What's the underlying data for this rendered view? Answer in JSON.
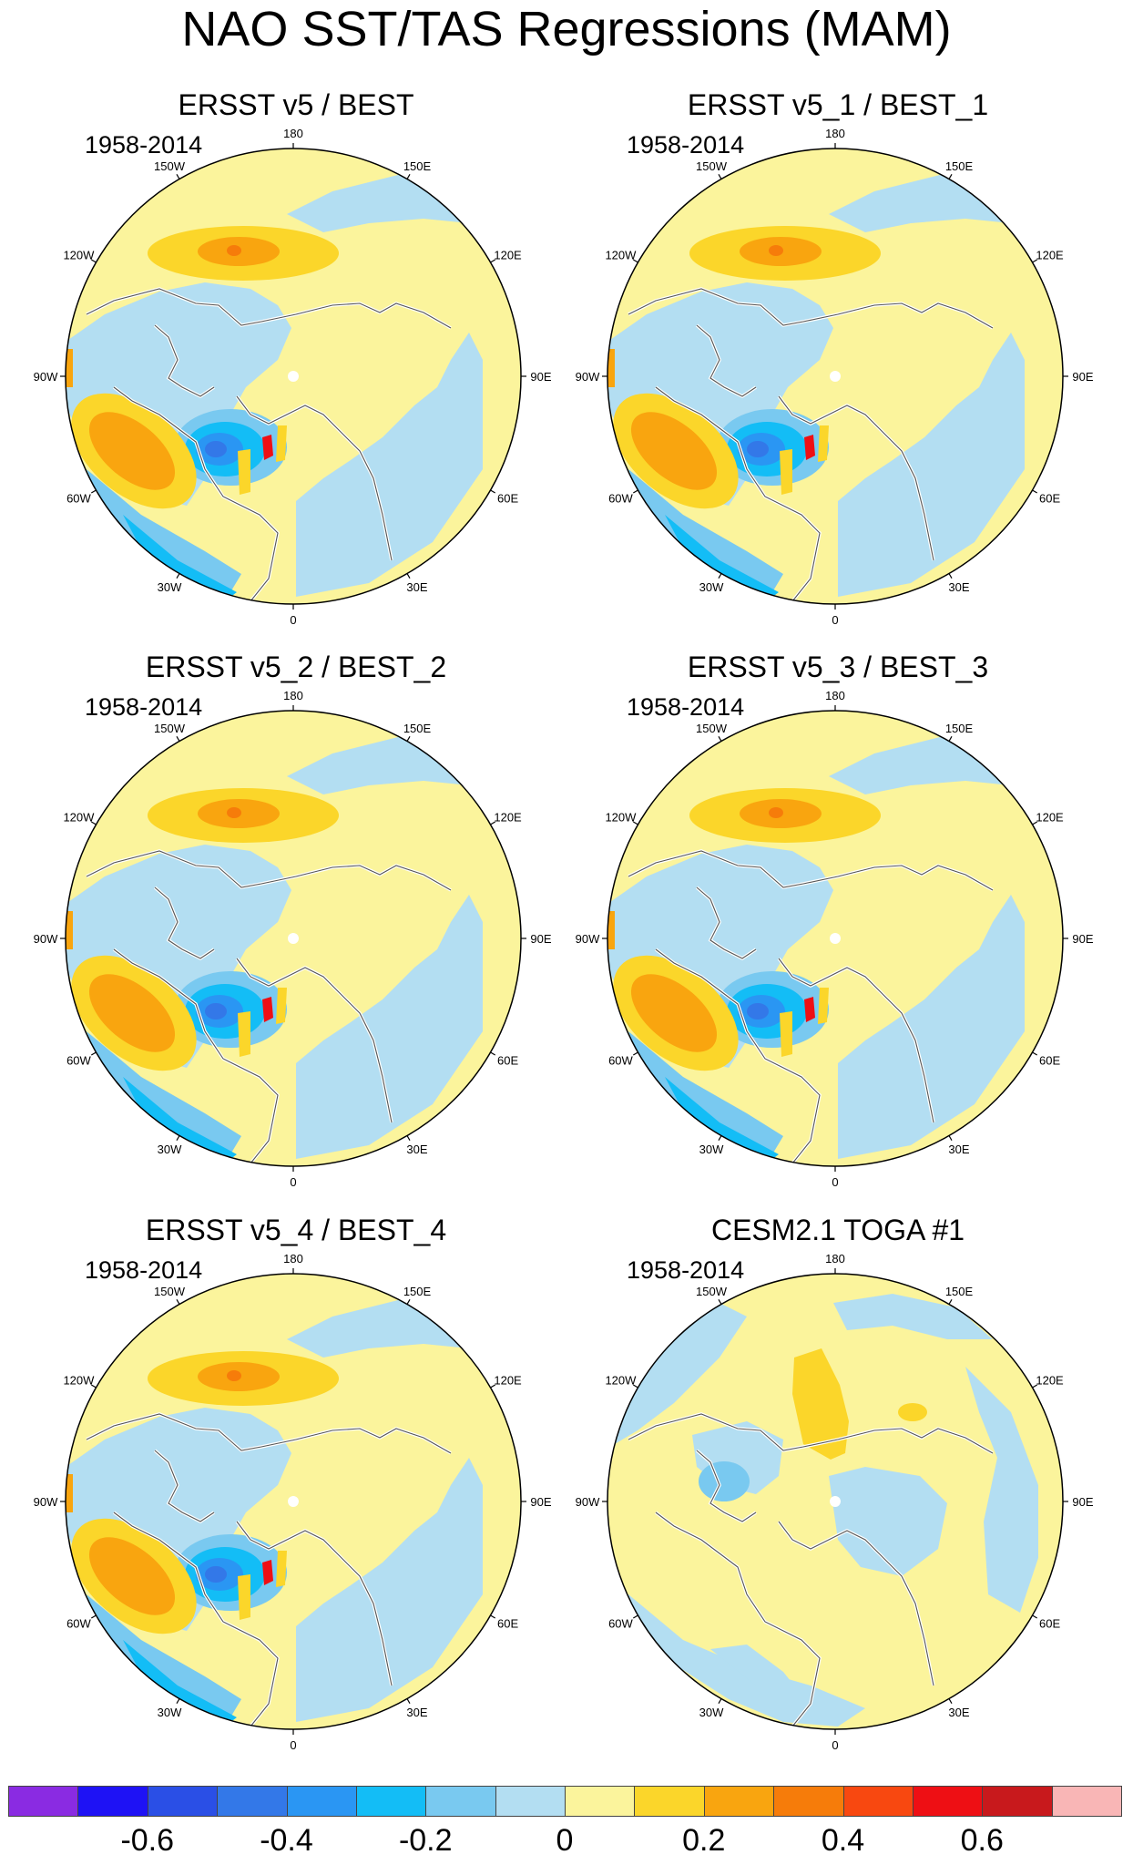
{
  "title": "NAO SST/TAS Regressions (MAM)",
  "longitude_labels": [
    "180",
    "150E",
    "120E",
    "90E",
    "60E",
    "30E",
    "0",
    "30W",
    "60W",
    "90W",
    "120W",
    "150W"
  ],
  "panels": [
    {
      "title": "ERSST v5 / BEST",
      "period": "1958-2014",
      "pattern": "obs"
    },
    {
      "title": "ERSST v5_1 / BEST_1",
      "period": "1958-2014",
      "pattern": "obs"
    },
    {
      "title": "ERSST v5_2 / BEST_2",
      "period": "1958-2014",
      "pattern": "obs"
    },
    {
      "title": "ERSST v5_3 / BEST_3",
      "period": "1958-2014",
      "pattern": "obs"
    },
    {
      "title": "ERSST v5_4 / BEST_4",
      "period": "1958-2014",
      "pattern": "obs"
    },
    {
      "title": "CESM2.1 TOGA #1",
      "period": "1958-2014",
      "pattern": "model"
    }
  ],
  "colorbar": {
    "colors": [
      "#8a2be2",
      "#1e12f5",
      "#2a4fe6",
      "#3378e8",
      "#2a96f3",
      "#13bdf6",
      "#79c9f0",
      "#b3def2",
      "#fbf49c",
      "#fbd62a",
      "#f9a50f",
      "#f67c0a",
      "#f84810",
      "#ee0f14",
      "#c8191c",
      "#f9b6b6"
    ],
    "labels": [
      "-0.6",
      "-0.4",
      "-0.2",
      "0",
      "0.2",
      "0.4",
      "0.6"
    ]
  }
}
